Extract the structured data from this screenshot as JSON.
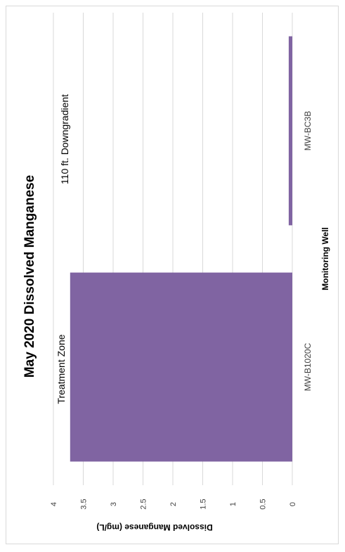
{
  "chart_data": {
    "type": "bar",
    "orientation": "rotated-90",
    "title": "May 2020 Dissolved Manganese",
    "xlabel": "Monitoring Well",
    "ylabel": "Dissolved Manganese (mg/L)",
    "categories": [
      "MW-B1020C",
      "MW-BC3B"
    ],
    "values": [
      3.72,
      0.06
    ],
    "ylim": [
      0,
      4
    ],
    "y_ticks": [
      "0",
      "0.5",
      "1",
      "1.5",
      "2",
      "2.5",
      "3",
      "3.5",
      "4"
    ],
    "grid": true,
    "annotations": [
      "Treatment Zone",
      "110 ft. Downgradient"
    ],
    "bar_color": "#8064a2",
    "grid_color": "#d9d9d9"
  }
}
